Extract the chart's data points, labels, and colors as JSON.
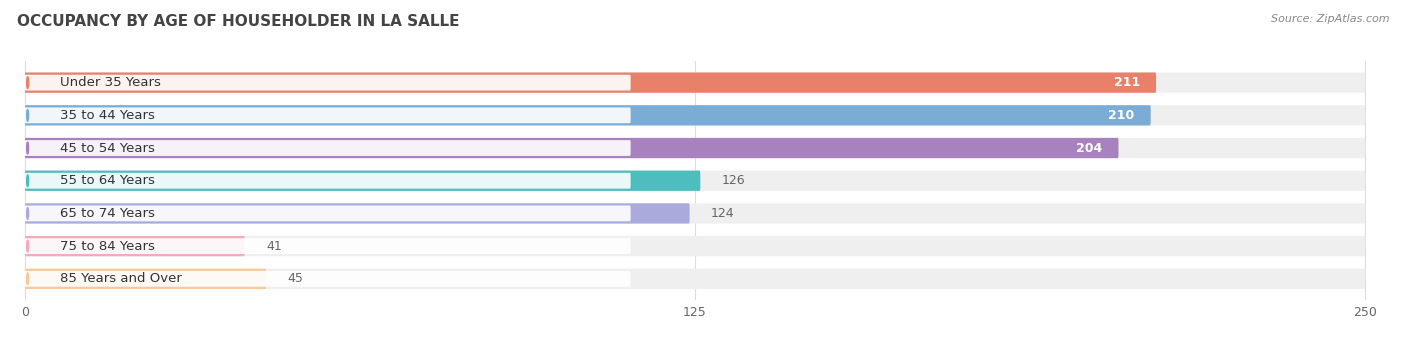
{
  "title": "OCCUPANCY BY AGE OF HOUSEHOLDER IN LA SALLE",
  "source": "Source: ZipAtlas.com",
  "categories": [
    "Under 35 Years",
    "35 to 44 Years",
    "45 to 54 Years",
    "55 to 64 Years",
    "65 to 74 Years",
    "75 to 84 Years",
    "85 Years and Over"
  ],
  "values": [
    211,
    210,
    204,
    126,
    124,
    41,
    45
  ],
  "bar_colors": [
    "#E8806A",
    "#7BADD4",
    "#A882BE",
    "#4DBDBE",
    "#AAAADD",
    "#F4AABB",
    "#F5C99A"
  ],
  "xlim": [
    0,
    250
  ],
  "xticks": [
    0,
    125,
    250
  ],
  "label_fontsize": 9.5,
  "title_fontsize": 11,
  "value_fontsize": 9,
  "bar_height": 0.62,
  "background_color": "#FFFFFF",
  "track_color": "#EFEFEF",
  "grid_color": "#DDDDDD"
}
